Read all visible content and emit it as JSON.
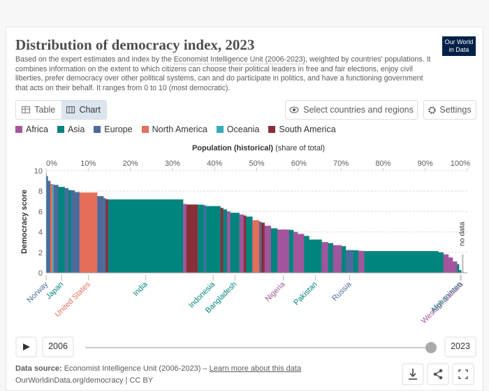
{
  "header": {
    "title": "Distribution of democracy index, 2023",
    "subtitle_before": "Based on the expert estimates and index by the ",
    "subtitle_link": "Economist Intelligence Unit (2006-2023)",
    "subtitle_after": ", weighted by countries' populations. It combines information on the extent to which citizens can choose their political leaders in free and fair elections, enjoy civil liberties, prefer democracy over other political systems, can and do participate in politics, and have a functioning government that acts on their behalf. It ranges from 0 to 10 (most democratic).",
    "logo_line1": "Our World",
    "logo_line2": "in Data"
  },
  "controls": {
    "table_tab": "Table",
    "chart_tab": "Chart",
    "select": "Select countries and regions",
    "settings": "Settings"
  },
  "chart_data": {
    "type": "marimekko",
    "x_label_bold": "Population (historical)",
    "x_label_rest": "(share of total)",
    "y_label": "Democracy score",
    "no_data_label": "no data",
    "xlim": [
      0,
      100
    ],
    "xticks": [
      {
        "value": 0,
        "label": "0%"
      },
      {
        "value": 10,
        "label": "10%"
      },
      {
        "value": 20,
        "label": "20%"
      },
      {
        "value": 30,
        "label": "30%"
      },
      {
        "value": 40,
        "label": "40%"
      },
      {
        "value": 50,
        "label": "50%"
      },
      {
        "value": 60,
        "label": "60%"
      },
      {
        "value": 70,
        "label": "70%"
      },
      {
        "value": 80,
        "label": "80%"
      },
      {
        "value": 90,
        "label": "90%"
      },
      {
        "value": 100,
        "label": "100%"
      }
    ],
    "ylim": [
      0,
      10
    ],
    "yticks": [
      0,
      2,
      4,
      6,
      8,
      10
    ],
    "grid": true,
    "series": [
      {
        "name": "Africa",
        "color": "#a2559c"
      },
      {
        "name": "Asia",
        "color": "#00847e"
      },
      {
        "name": "Europe",
        "color": "#4c6a9c"
      },
      {
        "name": "North America",
        "color": "#e56e5a"
      },
      {
        "name": "Oceania",
        "color": "#38aaba"
      },
      {
        "name": "South America",
        "color": "#883039"
      }
    ],
    "bars": [
      {
        "entity": "Norway",
        "region": "Europe",
        "value": 9.81,
        "share": 0.07
      },
      {
        "entity": null,
        "region": "Oceania",
        "value": 9.61,
        "share": 0.06
      },
      {
        "entity": null,
        "region": "Europe",
        "value": 9.45,
        "share": 0.3
      },
      {
        "entity": null,
        "region": "Europe",
        "value": 9.0,
        "share": 0.6
      },
      {
        "entity": null,
        "region": "North America",
        "value": 8.69,
        "share": 0.48
      },
      {
        "entity": null,
        "region": "Oceania",
        "value": 8.66,
        "share": 0.33
      },
      {
        "entity": null,
        "region": "Europe",
        "value": 8.6,
        "share": 1.06
      },
      {
        "entity": "Japan",
        "region": "Asia",
        "value": 8.4,
        "share": 1.55
      },
      {
        "entity": null,
        "region": "Europe",
        "value": 8.28,
        "share": 0.85
      },
      {
        "entity": null,
        "region": "Asia",
        "value": 8.09,
        "share": 0.65
      },
      {
        "entity": null,
        "region": "Europe",
        "value": 8.07,
        "share": 0.85
      },
      {
        "entity": null,
        "region": "Europe",
        "value": 7.9,
        "share": 1.15
      },
      {
        "entity": "United States",
        "region": "North America",
        "value": 7.85,
        "share": 4.2
      },
      {
        "entity": null,
        "region": "Europe",
        "value": 7.5,
        "share": 1.5
      },
      {
        "entity": null,
        "region": "Europe",
        "value": 7.3,
        "share": 0.5
      },
      {
        "entity": null,
        "region": "South America",
        "value": 7.2,
        "share": 0.6
      },
      {
        "entity": "India",
        "region": "Asia",
        "value": 7.18,
        "share": 17.8
      },
      {
        "entity": null,
        "region": "Africa",
        "value": 6.74,
        "share": 0.75
      },
      {
        "entity": null,
        "region": "South America",
        "value": 6.68,
        "share": 2.7
      },
      {
        "entity": null,
        "region": "Asia",
        "value": 6.66,
        "share": 1.45
      },
      {
        "entity": null,
        "region": "Europe",
        "value": 6.6,
        "share": 0.5
      },
      {
        "entity": "Indonesia",
        "region": "Asia",
        "value": 6.53,
        "share": 3.45
      },
      {
        "entity": null,
        "region": "South America",
        "value": 6.35,
        "share": 0.65
      },
      {
        "entity": null,
        "region": "Asia",
        "value": 6.2,
        "share": 0.9
      },
      {
        "entity": null,
        "region": "Africa",
        "value": 6.0,
        "share": 0.8
      },
      {
        "entity": "Bangladesh",
        "region": "Asia",
        "value": 5.87,
        "share": 2.15
      },
      {
        "entity": null,
        "region": "Africa",
        "value": 5.7,
        "share": 1.0
      },
      {
        "entity": null,
        "region": "South America",
        "value": 5.6,
        "share": 0.6
      },
      {
        "entity": null,
        "region": "Asia",
        "value": 5.5,
        "share": 1.5
      },
      {
        "entity": null,
        "region": "North America",
        "value": 5.14,
        "share": 1.6
      },
      {
        "entity": null,
        "region": "Europe",
        "value": 5.0,
        "share": 0.5
      },
      {
        "entity": null,
        "region": "South America",
        "value": 4.9,
        "share": 0.8
      },
      {
        "entity": null,
        "region": "Africa",
        "value": 4.6,
        "share": 1.5
      },
      {
        "entity": null,
        "region": "Asia",
        "value": 4.35,
        "share": 1.5
      },
      {
        "entity": "Nigeria",
        "region": "Africa",
        "value": 4.23,
        "share": 2.8
      },
      {
        "entity": null,
        "region": "Asia",
        "value": 4.2,
        "share": 1.05
      },
      {
        "entity": null,
        "region": "Africa",
        "value": 4.0,
        "share": 1.0
      },
      {
        "entity": null,
        "region": "Africa",
        "value": 3.8,
        "share": 1.5
      },
      {
        "entity": null,
        "region": "Asia",
        "value": 3.6,
        "share": 1.2
      },
      {
        "entity": "Pakistan",
        "region": "Asia",
        "value": 3.25,
        "share": 3.0
      },
      {
        "entity": null,
        "region": "Africa",
        "value": 3.0,
        "share": 1.5
      },
      {
        "entity": null,
        "region": "Asia",
        "value": 2.9,
        "share": 1.2
      },
      {
        "entity": null,
        "region": "Africa",
        "value": 2.7,
        "share": 2.0
      },
      {
        "entity": null,
        "region": "Asia",
        "value": 2.6,
        "share": 1.0
      },
      {
        "entity": "Russia",
        "region": "Europe",
        "value": 2.22,
        "share": 1.8
      },
      {
        "entity": null,
        "region": "Asia",
        "value": 2.2,
        "share": 1.2
      },
      {
        "entity": null,
        "region": "Africa",
        "value": 2.15,
        "share": 1.4
      },
      {
        "entity": null,
        "region": "Asia",
        "value": 2.12,
        "share": 17.6
      },
      {
        "entity": null,
        "region": "Asia",
        "value": 2.0,
        "share": 1.2
      },
      {
        "entity": null,
        "region": "Africa",
        "value": 1.8,
        "share": 1.2
      },
      {
        "entity": null,
        "region": "Africa",
        "value": 1.5,
        "share": 1.0
      },
      {
        "entity": null,
        "region": "Africa",
        "value": 1.1,
        "share": 1.0
      },
      {
        "entity": null,
        "region": "Asia",
        "value": 0.85,
        "share": 0.5
      },
      {
        "entity": "Afghanistan",
        "region": "Asia",
        "value": 0.26,
        "share": 0.52
      },
      {
        "entity": "Western Sahara",
        "region": "Africa",
        "value": null,
        "share": 0.01
      }
    ]
  },
  "timeline": {
    "start": "2006",
    "end": "2023"
  },
  "footer": {
    "source_label": "Data source:",
    "source": "Economist Intelligence Unit (2006-2023) –",
    "learn_more": "Learn more about this data",
    "url": "OurWorldinData.org/democracy | CC BY"
  }
}
